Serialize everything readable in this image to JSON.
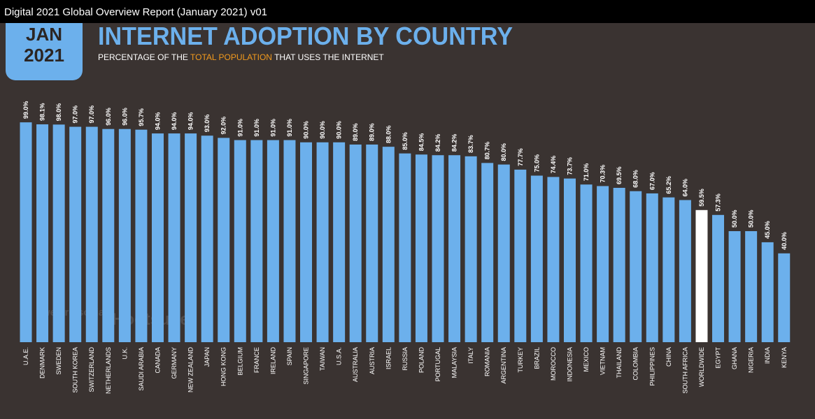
{
  "window_title": "Digital 2021 Global Overview Report (January 2021) v01",
  "badge": {
    "month": "JAN",
    "year": "2021"
  },
  "watermarks": [
    "we are social",
    "Hootsuite"
  ],
  "chart_data": {
    "type": "bar",
    "title": "INTERNET ADOPTION BY COUNTRY",
    "subtitle": [
      "PERCENTAGE OF THE ",
      "TOTAL POPULATION",
      " THAT USES THE INTERNET"
    ],
    "categories": [
      "U.A.E.",
      "DENMARK",
      "SWEDEN",
      "SOUTH KOREA",
      "SWITZERLAND",
      "NETHERLANDS",
      "U.K.",
      "SAUDI ARABIA",
      "CANADA",
      "GERMANY",
      "NEW ZEALAND",
      "JAPAN",
      "HONG KONG",
      "BELGIUM",
      "FRANCE",
      "IRELAND",
      "SPAIN",
      "SINGAPORE",
      "TAIWAN",
      "U.S.A.",
      "AUSTRALIA",
      "AUSTRIA",
      "ISRAEL",
      "RUSSIA",
      "POLAND",
      "PORTUGAL",
      "MALAYSIA",
      "ITALY",
      "ROMANIA",
      "ARGENTINA",
      "TURKEY",
      "BRAZIL",
      "MOROCCO",
      "INDONESIA",
      "MEXICO",
      "VIETNAM",
      "THAILAND",
      "COLOMBIA",
      "PHILIPPINES",
      "CHINA",
      "SOUTH AFRICA",
      "WORLDWIDE",
      "EGYPT",
      "GHANA",
      "NIGERIA",
      "INDIA",
      "KENYA"
    ],
    "values": [
      99.0,
      98.1,
      98.0,
      97.0,
      97.0,
      96.0,
      96.0,
      95.7,
      94.0,
      94.0,
      94.0,
      93.0,
      92.0,
      91.0,
      91.0,
      91.0,
      91.0,
      90.0,
      90.0,
      90.0,
      89.0,
      89.0,
      88.0,
      85.0,
      84.5,
      84.2,
      84.2,
      83.7,
      80.7,
      80.0,
      77.7,
      75.0,
      74.4,
      73.7,
      71.0,
      70.3,
      69.5,
      68.0,
      67.0,
      65.2,
      64.0,
      59.5,
      57.3,
      50.0,
      50.0,
      45.0,
      40.0
    ],
    "value_labels": [
      "99.0%",
      "98.1%",
      "98.0%",
      "97.0%",
      "97.0%",
      "96.0%",
      "96.0%",
      "95.7%",
      "94.0%",
      "94.0%",
      "94.0%",
      "93.0%",
      "92.0%",
      "91.0%",
      "91.0%",
      "91.0%",
      "91.0%",
      "90.0%",
      "90.0%",
      "90.0%",
      "89.0%",
      "89.0%",
      "88.0%",
      "85.0%",
      "84.5%",
      "84.2%",
      "84.2%",
      "83.7%",
      "80.7%",
      "80.0%",
      "77.7%",
      "75.0%",
      "74.4%",
      "73.7%",
      "71.0%",
      "70.3%",
      "69.5%",
      "68.0%",
      "67.0%",
      "65.2%",
      "64.0%",
      "59.5%",
      "57.3%",
      "50.0%",
      "50.0%",
      "45.0%",
      "40.0%"
    ],
    "colors": [
      "#6cb0ec",
      "#6cb0ec",
      "#6cb0ec",
      "#6cb0ec",
      "#6cb0ec",
      "#6cb0ec",
      "#6cb0ec",
      "#6cb0ec",
      "#6cb0ec",
      "#6cb0ec",
      "#6cb0ec",
      "#6cb0ec",
      "#6cb0ec",
      "#6cb0ec",
      "#6cb0ec",
      "#6cb0ec",
      "#6cb0ec",
      "#6cb0ec",
      "#6cb0ec",
      "#6cb0ec",
      "#6cb0ec",
      "#6cb0ec",
      "#6cb0ec",
      "#6cb0ec",
      "#6cb0ec",
      "#6cb0ec",
      "#6cb0ec",
      "#6cb0ec",
      "#6cb0ec",
      "#6cb0ec",
      "#6cb0ec",
      "#6cb0ec",
      "#6cb0ec",
      "#6cb0ec",
      "#6cb0ec",
      "#6cb0ec",
      "#6cb0ec",
      "#6cb0ec",
      "#6cb0ec",
      "#6cb0ec",
      "#6cb0ec",
      "#ffffff",
      "#6cb0ec",
      "#6cb0ec",
      "#6cb0ec",
      "#6cb0ec",
      "#6cb0ec"
    ],
    "ylim": [
      0,
      100
    ]
  }
}
